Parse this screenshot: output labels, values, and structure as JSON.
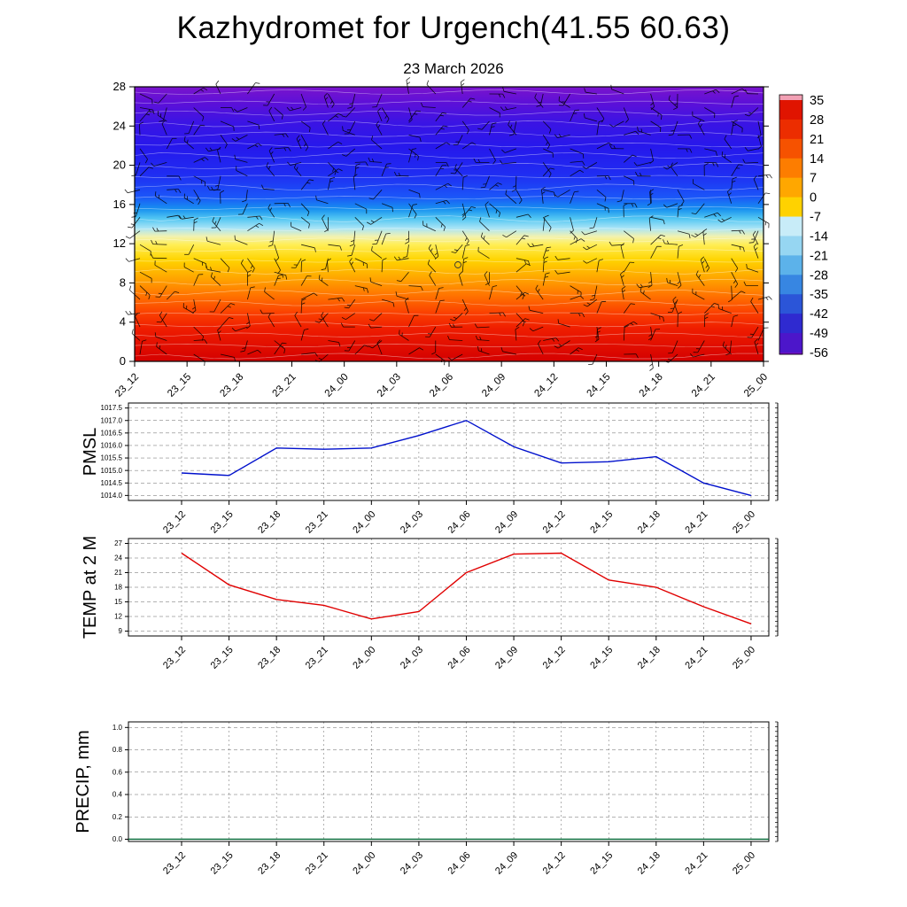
{
  "title": "Kazhydromet for Urgench(41.55 60.63)",
  "subtitle": "23 March 2026",
  "time_labels": [
    "23_12",
    "23_15",
    "23_18",
    "23_21",
    "24_00",
    "24_03",
    "24_06",
    "24_09",
    "24_12",
    "24_15",
    "24_18",
    "24_21",
    "25_00"
  ],
  "chart_data": [
    {
      "type": "heatmap",
      "name": "Temperature time-height cross-section with wind barbs",
      "x_categories": [
        "23_12",
        "23_15",
        "23_18",
        "23_21",
        "24_00",
        "24_03",
        "24_06",
        "24_09",
        "24_12",
        "24_15",
        "24_18",
        "24_21",
        "25_00"
      ],
      "ylim": [
        0,
        28
      ],
      "y_ticks": [
        0,
        4,
        8,
        12,
        16,
        20,
        24,
        28
      ],
      "colorbar_ticks": [
        35,
        28,
        21,
        14,
        7,
        0,
        -7,
        -14,
        -21,
        -28,
        -35,
        -42,
        -49,
        -56
      ],
      "colorbar_colors": [
        "#f2a0b4",
        "#e01400",
        "#ec2d00",
        "#f65200",
        "#fd7d00",
        "#ffa700",
        "#ffd200",
        "#c8ecf8",
        "#96d6f2",
        "#5cb2ea",
        "#3786e2",
        "#2b55d8",
        "#2f2ad0",
        "#4c16ca",
        "#7010c2"
      ],
      "gradient_stops": [
        [
          0,
          "#7a14cc"
        ],
        [
          0.06,
          "#5c10d8"
        ],
        [
          0.13,
          "#3b14e4"
        ],
        [
          0.22,
          "#2618ec"
        ],
        [
          0.32,
          "#1f2df2"
        ],
        [
          0.4,
          "#1b55f8"
        ],
        [
          0.445,
          "#1790f0"
        ],
        [
          0.48,
          "#52c6f2"
        ],
        [
          0.515,
          "#a8e4f6"
        ],
        [
          0.545,
          "#f2f2b0"
        ],
        [
          0.575,
          "#ffee55"
        ],
        [
          0.63,
          "#ffd400"
        ],
        [
          0.7,
          "#ffa300"
        ],
        [
          0.76,
          "#ff7300"
        ],
        [
          0.82,
          "#fb4300"
        ],
        [
          0.88,
          "#ef1d00"
        ],
        [
          1,
          "#d40000"
        ]
      ],
      "overlays": [
        "wind-barbs",
        "contour-lines"
      ]
    },
    {
      "type": "line",
      "name": "PMSL",
      "color": "#0010cc",
      "categories": [
        "23_12",
        "23_15",
        "23_18",
        "23_21",
        "24_00",
        "24_03",
        "24_06",
        "24_09",
        "24_12",
        "24_15",
        "24_18",
        "24_21",
        "25_00"
      ],
      "values": [
        1014.9,
        1014.8,
        1015.9,
        1015.85,
        1015.9,
        1016.4,
        1017.0,
        1015.95,
        1015.3,
        1015.35,
        1015.55,
        1014.5,
        1014.0
      ],
      "y_ticks": [
        1017.5,
        1017.0,
        1016.5,
        1016.0,
        1015.5,
        1015.0,
        1014.5,
        1014.0
      ],
      "y_tick_labels": [
        "1017.5",
        "1017.0",
        "1016.5",
        "1016.0",
        "1015.5",
        "1015.0",
        "1014.5",
        "1014.0"
      ],
      "ylim": [
        1014.0,
        1017.5
      ]
    },
    {
      "type": "line",
      "name": "TEMP at 2 M",
      "color": "#e00000",
      "categories": [
        "23_12",
        "23_15",
        "23_18",
        "23_21",
        "24_00",
        "24_03",
        "24_06",
        "24_09",
        "24_12",
        "24_15",
        "24_18",
        "24_21",
        "25_00"
      ],
      "values": [
        25.0,
        18.5,
        15.5,
        14.3,
        11.5,
        13.0,
        21.0,
        24.8,
        25.0,
        19.5,
        18.0,
        14.0,
        10.5
      ],
      "y_ticks": [
        27,
        24,
        21,
        18,
        15,
        12,
        9
      ],
      "y_tick_labels": [
        "27",
        "24",
        "21",
        "18",
        "15",
        "12",
        "9"
      ],
      "ylim": [
        9,
        27
      ]
    },
    {
      "type": "line",
      "name": "PRECIP, mm",
      "color": "#006633",
      "categories": [
        "23_12",
        "23_15",
        "23_18",
        "23_21",
        "24_00",
        "24_03",
        "24_06",
        "24_09",
        "24_12",
        "24_15",
        "24_18",
        "24_21",
        "25_00"
      ],
      "values": [
        0,
        0,
        0,
        0,
        0,
        0,
        0,
        0,
        0,
        0,
        0,
        0,
        0
      ],
      "y_ticks": [
        1.0,
        0.8,
        0.6,
        0.4,
        0.2,
        0.0
      ],
      "y_tick_labels": [
        "1.0",
        "0.8",
        "0.6",
        "0.4",
        "0.2",
        "0.0"
      ],
      "ylim": [
        0.0,
        1.0
      ]
    }
  ]
}
